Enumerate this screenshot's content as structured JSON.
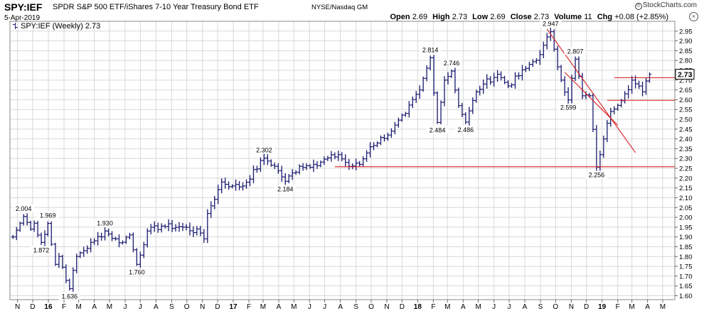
{
  "header": {
    "symbol": "SPY:IEF",
    "description": "SPDR S&P 500 ETF/iShares 7-10 Year Treasury Bond ETF",
    "exchange": "NYSE/Nasdaq GM",
    "date": "5-Apr-2019",
    "logo": "StockCharts.com",
    "quote": {
      "open_label": "Open",
      "open": "2.69",
      "high_label": "High",
      "high": "2.73",
      "low_label": "Low",
      "low": "2.69",
      "close_label": "Close",
      "close": "2.73",
      "volume_label": "Volume",
      "volume": "11",
      "chg_label": "Chg",
      "chg": "+0.08 (+2.85%)"
    },
    "close_icon": "close-icon"
  },
  "legend": {
    "text": "SPY:IEF (Weekly) 2.73"
  },
  "colors": {
    "bars": "#1a1a6e",
    "lines": "#d81e1e",
    "grid": "#d8d8d8",
    "last_value_bg": "#ffffff"
  },
  "chart_data": {
    "type": "ohlc",
    "title": "SPY:IEF (Weekly) 2.73",
    "yaxis": {
      "ticks": [
        "1.60",
        "1.65",
        "1.70",
        "1.75",
        "1.80",
        "1.85",
        "1.90",
        "1.95",
        "2.00",
        "2.05",
        "2.10",
        "2.15",
        "2.20",
        "2.25",
        "2.30",
        "2.35",
        "2.40",
        "2.45",
        "2.50",
        "2.55",
        "2.60",
        "2.65",
        "2.70",
        "2.75",
        "2.80",
        "2.85",
        "2.90",
        "2.95"
      ],
      "range": [
        1.58,
        3.0
      ],
      "position": "right",
      "last_value": "2.73"
    },
    "xaxis": {
      "ticks": [
        {
          "label": "N",
          "date": "2015-11-01"
        },
        {
          "label": "D",
          "date": "2015-12-01"
        },
        {
          "label": "16",
          "date": "2016-01-01",
          "bold": true
        },
        {
          "label": "F",
          "date": "2016-02-01"
        },
        {
          "label": "M",
          "date": "2016-03-01"
        },
        {
          "label": "A",
          "date": "2016-04-01"
        },
        {
          "label": "M",
          "date": "2016-05-01"
        },
        {
          "label": "J",
          "date": "2016-06-01"
        },
        {
          "label": "J",
          "date": "2016-07-01"
        },
        {
          "label": "A",
          "date": "2016-08-01"
        },
        {
          "label": "S",
          "date": "2016-09-01"
        },
        {
          "label": "O",
          "date": "2016-10-01"
        },
        {
          "label": "N",
          "date": "2016-11-01"
        },
        {
          "label": "D",
          "date": "2016-12-01"
        },
        {
          "label": "17",
          "date": "2017-01-01",
          "bold": true
        },
        {
          "label": "F",
          "date": "2017-02-01"
        },
        {
          "label": "M",
          "date": "2017-03-01"
        },
        {
          "label": "A",
          "date": "2017-04-01"
        },
        {
          "label": "M",
          "date": "2017-05-01"
        },
        {
          "label": "J",
          "date": "2017-06-01"
        },
        {
          "label": "J",
          "date": "2017-07-01"
        },
        {
          "label": "A",
          "date": "2017-08-01"
        },
        {
          "label": "S",
          "date": "2017-09-01"
        },
        {
          "label": "O",
          "date": "2017-10-01"
        },
        {
          "label": "N",
          "date": "2017-11-01"
        },
        {
          "label": "D",
          "date": "2017-12-01"
        },
        {
          "label": "18",
          "date": "2018-01-01",
          "bold": true
        },
        {
          "label": "F",
          "date": "2018-02-01"
        },
        {
          "label": "M",
          "date": "2018-03-01"
        },
        {
          "label": "A",
          "date": "2018-04-01"
        },
        {
          "label": "M",
          "date": "2018-05-01"
        },
        {
          "label": "J",
          "date": "2018-06-01"
        },
        {
          "label": "J",
          "date": "2018-07-01"
        },
        {
          "label": "A",
          "date": "2018-08-01"
        },
        {
          "label": "S",
          "date": "2018-09-01"
        },
        {
          "label": "O",
          "date": "2018-10-01"
        },
        {
          "label": "N",
          "date": "2018-11-01"
        },
        {
          "label": "D",
          "date": "2018-12-01"
        },
        {
          "label": "19",
          "date": "2019-01-01",
          "bold": true
        },
        {
          "label": "F",
          "date": "2019-02-01"
        },
        {
          "label": "M",
          "date": "2019-03-01"
        },
        {
          "label": "A",
          "date": "2019-04-01"
        },
        {
          "label": "M",
          "date": "2019-05-01"
        }
      ],
      "range": [
        "2015-10-17",
        "2019-05-25"
      ],
      "grid": true
    },
    "ohlc_pivots": [
      {
        "date": "2015-10-23",
        "value": 1.9
      },
      {
        "date": "2015-11-06",
        "value": 1.97
      },
      {
        "date": "2015-11-13",
        "value": 2.004
      },
      {
        "date": "2015-11-27",
        "value": 1.94
      },
      {
        "date": "2015-12-04",
        "value": 1.97
      },
      {
        "date": "2015-12-18",
        "value": 1.872
      },
      {
        "date": "2015-12-31",
        "value": 1.969
      },
      {
        "date": "2016-01-15",
        "value": 1.76
      },
      {
        "date": "2016-01-22",
        "value": 1.8
      },
      {
        "date": "2016-02-12",
        "value": 1.636
      },
      {
        "date": "2016-02-26",
        "value": 1.8
      },
      {
        "date": "2016-04-01",
        "value": 1.88
      },
      {
        "date": "2016-04-22",
        "value": 1.93
      },
      {
        "date": "2016-05-20",
        "value": 1.87
      },
      {
        "date": "2016-06-10",
        "value": 1.91
      },
      {
        "date": "2016-06-24",
        "value": 1.76
      },
      {
        "date": "2016-07-15",
        "value": 1.93
      },
      {
        "date": "2016-08-12",
        "value": 1.955
      },
      {
        "date": "2016-09-23",
        "value": 1.95
      },
      {
        "date": "2016-10-28",
        "value": 1.92
      },
      {
        "date": "2016-11-04",
        "value": 1.89
      },
      {
        "date": "2016-11-11",
        "value": 2.02
      },
      {
        "date": "2016-12-09",
        "value": 2.18
      },
      {
        "date": "2016-12-30",
        "value": 2.16
      },
      {
        "date": "2017-01-20",
        "value": 2.16
      },
      {
        "date": "2017-03-03",
        "value": 2.302
      },
      {
        "date": "2017-03-24",
        "value": 2.26
      },
      {
        "date": "2017-04-14",
        "value": 2.184
      },
      {
        "date": "2017-05-12",
        "value": 2.26
      },
      {
        "date": "2017-06-09",
        "value": 2.27
      },
      {
        "date": "2017-07-28",
        "value": 2.32
      },
      {
        "date": "2017-08-18",
        "value": 2.26
      },
      {
        "date": "2017-09-08",
        "value": 2.27
      },
      {
        "date": "2017-09-29",
        "value": 2.36
      },
      {
        "date": "2017-11-10",
        "value": 2.44
      },
      {
        "date": "2017-12-08",
        "value": 2.53
      },
      {
        "date": "2018-01-05",
        "value": 2.65
      },
      {
        "date": "2018-01-26",
        "value": 2.814
      },
      {
        "date": "2018-02-09",
        "value": 2.484
      },
      {
        "date": "2018-02-23",
        "value": 2.7
      },
      {
        "date": "2018-03-09",
        "value": 2.746
      },
      {
        "date": "2018-03-23",
        "value": 2.57
      },
      {
        "date": "2018-04-06",
        "value": 2.486
      },
      {
        "date": "2018-04-27",
        "value": 2.64
      },
      {
        "date": "2018-05-11",
        "value": 2.68
      },
      {
        "date": "2018-06-08",
        "value": 2.73
      },
      {
        "date": "2018-06-29",
        "value": 2.67
      },
      {
        "date": "2018-08-03",
        "value": 2.76
      },
      {
        "date": "2018-08-31",
        "value": 2.83
      },
      {
        "date": "2018-09-21",
        "value": 2.947
      },
      {
        "date": "2018-10-12",
        "value": 2.7
      },
      {
        "date": "2018-10-26",
        "value": 2.599
      },
      {
        "date": "2018-11-09",
        "value": 2.807
      },
      {
        "date": "2018-11-23",
        "value": 2.62
      },
      {
        "date": "2018-12-07",
        "value": 2.62
      },
      {
        "date": "2018-12-21",
        "value": 2.256
      },
      {
        "date": "2019-01-04",
        "value": 2.4
      },
      {
        "date": "2019-01-18",
        "value": 2.54
      },
      {
        "date": "2019-02-15",
        "value": 2.63
      },
      {
        "date": "2019-03-01",
        "value": 2.7
      },
      {
        "date": "2019-03-22",
        "value": 2.64
      },
      {
        "date": "2019-04-05",
        "value": 2.73
      }
    ],
    "annotations": [
      {
        "text": "2.004",
        "date": "2015-11-13",
        "value": 2.004,
        "pos": "above"
      },
      {
        "text": "1.969",
        "date": "2015-12-31",
        "value": 1.969,
        "pos": "above"
      },
      {
        "text": "1.872",
        "date": "2015-12-18",
        "value": 1.872,
        "pos": "below"
      },
      {
        "text": "1.930",
        "date": "2016-04-22",
        "value": 1.93,
        "pos": "above"
      },
      {
        "text": "1.636",
        "date": "2016-02-12",
        "value": 1.636,
        "pos": "below"
      },
      {
        "text": "1.760",
        "date": "2016-06-24",
        "value": 1.76,
        "pos": "below"
      },
      {
        "text": "2.302",
        "date": "2017-03-03",
        "value": 2.302,
        "pos": "above"
      },
      {
        "text": "2.184",
        "date": "2017-04-14",
        "value": 2.184,
        "pos": "below"
      },
      {
        "text": "2.814",
        "date": "2018-01-26",
        "value": 2.814,
        "pos": "above"
      },
      {
        "text": "2.746",
        "date": "2018-03-09",
        "value": 2.746,
        "pos": "above"
      },
      {
        "text": "2.484",
        "date": "2018-02-09",
        "value": 2.484,
        "pos": "below"
      },
      {
        "text": "2.486",
        "date": "2018-04-06",
        "value": 2.486,
        "pos": "below"
      },
      {
        "text": "2.947",
        "date": "2018-09-21",
        "value": 2.947,
        "pos": "above"
      },
      {
        "text": "2.807",
        "date": "2018-11-09",
        "value": 2.807,
        "pos": "above"
      },
      {
        "text": "2.599",
        "date": "2018-10-26",
        "value": 2.599,
        "pos": "below"
      },
      {
        "text": "2.256",
        "date": "2018-12-21",
        "value": 2.256,
        "pos": "below"
      }
    ],
    "lines": [
      {
        "name": "support",
        "from": {
          "date": "2017-07-21",
          "value": 2.258
        },
        "to": {
          "date": "2019-05-25",
          "value": 2.258
        }
      },
      {
        "name": "downtrend-upper",
        "from": {
          "date": "2018-09-14",
          "value": 2.96
        },
        "to": {
          "date": "2019-03-08",
          "value": 2.33
        }
      },
      {
        "name": "downtrend-lower",
        "from": {
          "date": "2018-10-19",
          "value": 2.74
        },
        "to": {
          "date": "2019-02-01",
          "value": 2.47
        }
      },
      {
        "name": "range-top",
        "from": {
          "date": "2019-01-25",
          "value": 2.712
        },
        "to": {
          "date": "2019-05-25",
          "value": 2.712
        }
      },
      {
        "name": "range-bottom",
        "from": {
          "date": "2019-01-11",
          "value": 2.597
        },
        "to": {
          "date": "2019-05-25",
          "value": 2.597
        }
      }
    ]
  }
}
